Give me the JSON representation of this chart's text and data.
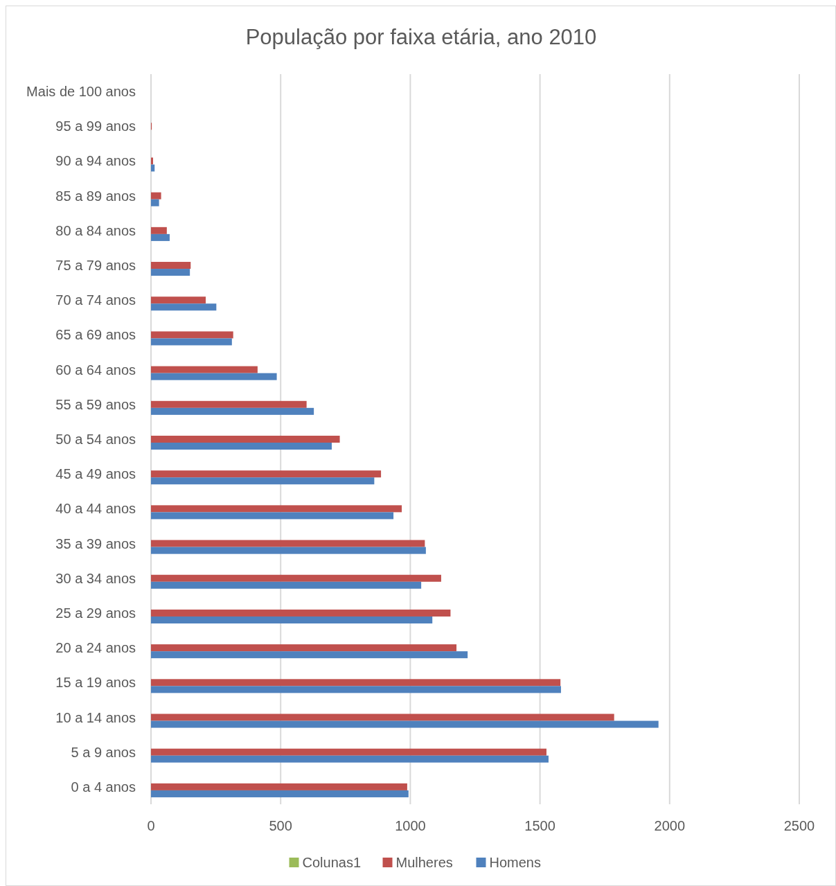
{
  "chart_data": {
    "type": "bar",
    "orientation": "horizontal",
    "title": "População por faixa etária, ano 2010",
    "categories": [
      "Mais de 100 anos",
      "95 a 99 anos",
      "90 a 94 anos",
      "85 a 89 anos",
      "80 a 84 anos",
      "75 a 79 anos",
      "70 a 74 anos",
      "65 a 69 anos",
      "60 a 64 anos",
      "55 a 59 anos",
      "50 a 54 anos",
      "45 a 49 anos",
      "40 a 44 anos",
      "35 a 39 anos",
      "30 a 34 anos",
      "25 a 29 anos",
      "20 a 24 anos",
      "15 a 19 anos",
      "10 a 14 anos",
      "5 a 9 anos",
      "0 a 4 anos"
    ],
    "series": [
      {
        "name": "Colunas1",
        "color": "#9bbb59",
        "values": [
          null,
          null,
          null,
          null,
          null,
          null,
          null,
          null,
          null,
          null,
          null,
          null,
          null,
          null,
          null,
          null,
          null,
          null,
          null,
          null,
          null
        ]
      },
      {
        "name": "Mulheres",
        "color": "#c0504d",
        "values": [
          0,
          3,
          8,
          39,
          61,
          153,
          211,
          317,
          411,
          600,
          728,
          887,
          967,
          1056,
          1119,
          1155,
          1178,
          1579,
          1786,
          1525,
          988
        ]
      },
      {
        "name": "Homens",
        "color": "#4f81bd",
        "values": [
          0,
          0,
          14,
          31,
          72,
          150,
          252,
          312,
          485,
          628,
          697,
          861,
          935,
          1060,
          1042,
          1085,
          1221,
          1581,
          1957,
          1533,
          993
        ]
      }
    ],
    "xlim": [
      0,
      2500
    ],
    "xticks": [
      0,
      500,
      1000,
      1500,
      2000,
      2500
    ],
    "grid": "x",
    "legend": "bottom"
  }
}
